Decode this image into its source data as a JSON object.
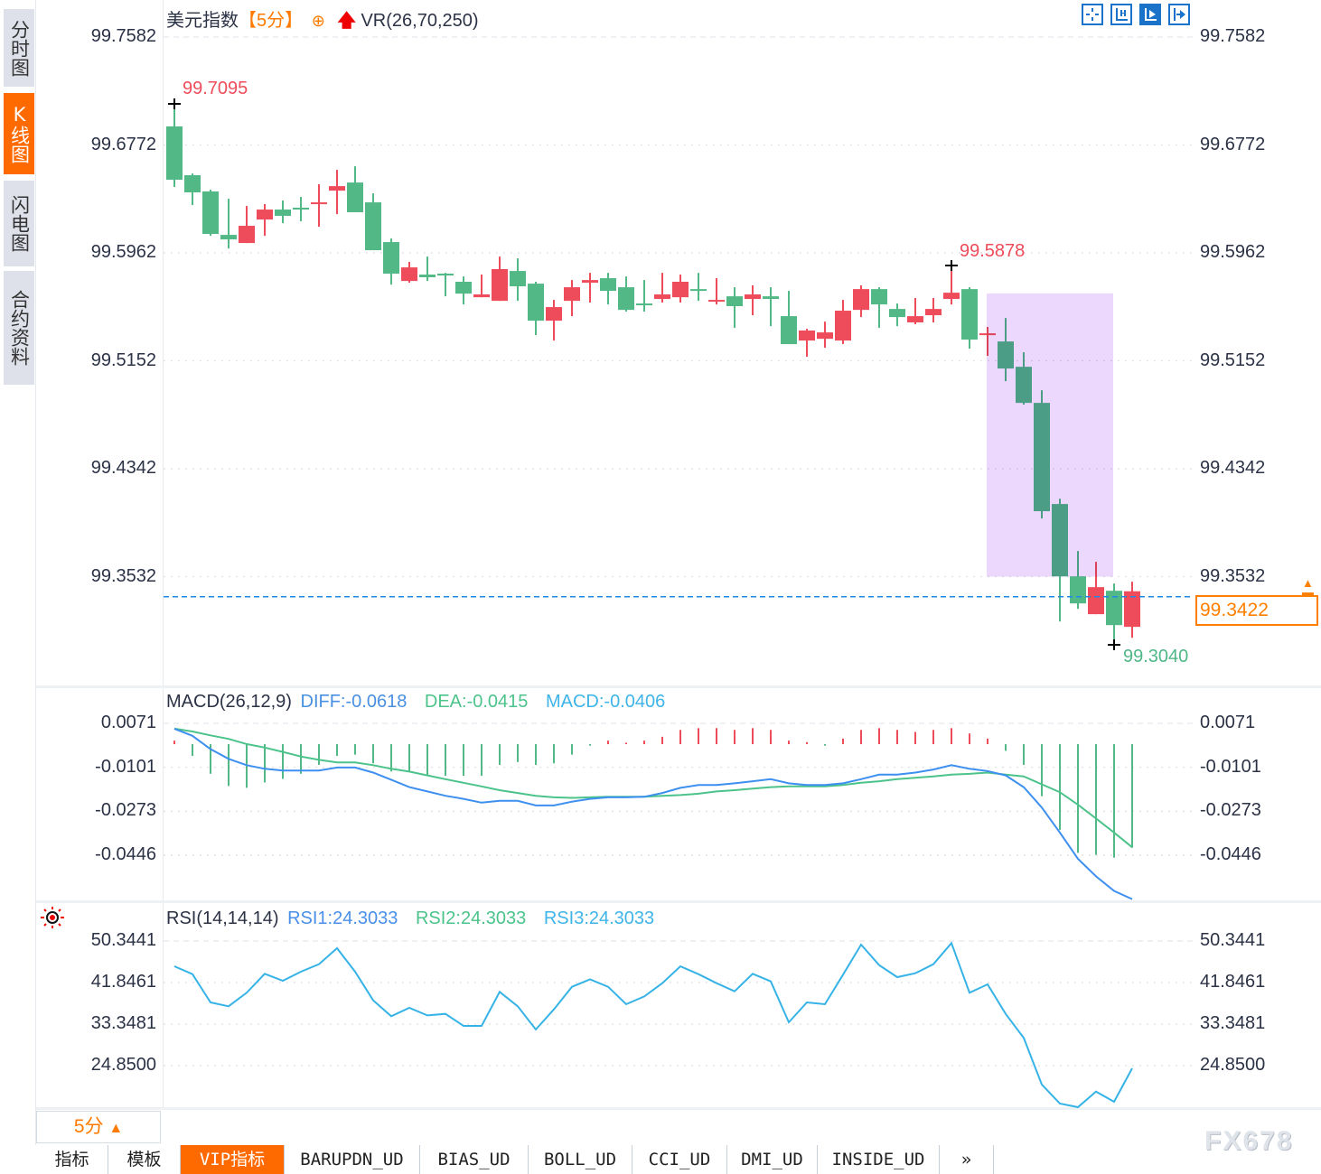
{
  "sidebar": {
    "tabs": [
      {
        "label": "分时图",
        "active": false
      },
      {
        "label": "K线图",
        "active": true
      },
      {
        "label": "闪电图",
        "active": false
      },
      {
        "label": "合约资料",
        "active": false
      }
    ]
  },
  "header": {
    "symbol": "美元指数",
    "period": "【5分】",
    "add_icon": "circle-plus-icon",
    "indicator_icon": "red-up-arrow-icon",
    "indicator": "VR(26,70,250)"
  },
  "toolbar": {
    "icons": [
      "crosshair-icon",
      "axis-zoom-icon",
      "axis-play-icon",
      "scroll-to-end-icon"
    ],
    "active_index": 2
  },
  "colors": {
    "up": "#ee4c5b",
    "down": "#52b986",
    "diff": "#3d8ff0",
    "dea": "#4cc38a",
    "rsi": "#36b3e6",
    "accent": "#ff6a00",
    "current_price_line": "#1e88e5",
    "highlight": "#ecd8fd"
  },
  "chart_data": [
    {
      "type": "candlestick",
      "title": "美元指数",
      "yticks": [
        "99.7582",
        "99.6772",
        "99.5962",
        "99.5152",
        "99.4342",
        "99.3532"
      ],
      "ylim": [
        99.3532,
        99.7582
      ],
      "grid": true,
      "high_label": "99.7095",
      "mid_high_label": "99.5878",
      "low_label": "99.3040",
      "current_price": "99.3422",
      "highlight_range_candles": [
        45,
        52
      ],
      "highlight_price_range": [
        99.3532,
        99.5658
      ],
      "candles_ohlc": [
        [
          99.6911,
          99.7095,
          99.6457,
          99.6511
        ],
        [
          99.6545,
          99.6558,
          99.6321,
          99.6416
        ],
        [
          99.6423,
          99.6436,
          99.609,
          99.6104
        ],
        [
          99.6097,
          99.6368,
          99.5995,
          99.6063
        ],
        [
          99.6036,
          99.6314,
          99.6036,
          99.6165
        ],
        [
          99.6212,
          99.6328,
          99.609,
          99.6287
        ],
        [
          99.6287,
          99.6355,
          99.6185,
          99.624
        ],
        [
          99.6301,
          99.6382,
          99.6199,
          99.6287
        ],
        [
          99.6328,
          99.6477,
          99.6158,
          99.6341
        ],
        [
          99.6429,
          99.6585,
          99.6253,
          99.6463
        ],
        [
          99.649,
          99.6612,
          99.6267,
          99.6267
        ],
        [
          99.6341,
          99.6409,
          99.5982,
          99.5982
        ],
        [
          99.6043,
          99.607,
          99.5724,
          99.5806
        ],
        [
          99.5751,
          99.5894,
          99.5738,
          99.5853
        ],
        [
          99.5799,
          99.5934,
          99.5751,
          99.5779
        ],
        [
          99.5806,
          99.5812,
          99.5636,
          99.5792
        ],
        [
          99.5745,
          99.5785,
          99.5575,
          99.5656
        ],
        [
          99.5629,
          99.5799,
          99.5629,
          99.565
        ],
        [
          99.5602,
          99.5934,
          99.5602,
          99.584
        ],
        [
          99.5826,
          99.5921,
          99.5602,
          99.5711
        ],
        [
          99.5731,
          99.5745,
          99.5345,
          99.5453
        ],
        [
          99.5453,
          99.5609,
          99.5304,
          99.5555
        ],
        [
          99.5602,
          99.5758,
          99.5487,
          99.5704
        ],
        [
          99.5738,
          99.5812,
          99.5589,
          99.5758
        ],
        [
          99.5772,
          99.5812,
          99.5575,
          99.5677
        ],
        [
          99.5704,
          99.5785,
          99.5521,
          99.5534
        ],
        [
          99.5582,
          99.5758,
          99.5521,
          99.5575
        ],
        [
          99.5616,
          99.5812,
          99.5589,
          99.565
        ],
        [
          99.5629,
          99.5799,
          99.5589,
          99.5745
        ],
        [
          99.569,
          99.5812,
          99.5602,
          99.5684
        ],
        [
          99.5602,
          99.5772,
          99.5575,
          99.5609
        ],
        [
          99.5636,
          99.5704,
          99.5399,
          99.5562
        ],
        [
          99.5616,
          99.5718,
          99.5494,
          99.565
        ],
        [
          99.5636,
          99.5704,
          99.5412,
          99.5616
        ],
        [
          99.5487,
          99.5677,
          99.5277,
          99.5277
        ],
        [
          99.5304,
          99.5392,
          99.5182,
          99.5379
        ],
        [
          99.5317,
          99.5446,
          99.525,
          99.5365
        ],
        [
          99.5304,
          99.5609,
          99.5277,
          99.5528
        ],
        [
          99.5534,
          99.5718,
          99.548,
          99.569
        ],
        [
          99.569,
          99.5704,
          99.5399,
          99.5575
        ],
        [
          99.5541,
          99.5582,
          99.5412,
          99.548
        ],
        [
          99.544,
          99.5623,
          99.5426,
          99.5487
        ],
        [
          99.5494,
          99.5623,
          99.544,
          99.5541
        ],
        [
          99.5616,
          99.5878,
          99.5575,
          99.5663
        ],
        [
          99.569,
          99.5704,
          99.5243,
          99.5311
        ],
        [
          99.5351,
          99.5406,
          99.5189,
          99.5358
        ],
        [
          99.5297,
          99.5473,
          99.4999,
          99.5094
        ],
        [
          99.5107,
          99.5216,
          99.4823,
          99.4836
        ],
        [
          99.4836,
          99.4931,
          99.3968,
          99.4023
        ],
        [
          99.4077,
          99.4117,
          99.3195,
          99.3534
        ],
        [
          99.3534,
          99.3724,
          99.329,
          99.3331
        ],
        [
          99.325,
          99.3643,
          99.325,
          99.3453
        ],
        [
          99.3426,
          99.348,
          99.304,
          99.3168
        ],
        [
          99.3155,
          99.3494,
          99.3073,
          99.3422
        ]
      ]
    },
    {
      "type": "line+bar",
      "title": "MACD(26,12,9)",
      "legend": {
        "diff": "DIFF:-0.0618",
        "dea": "DEA:-0.0415",
        "macd": "MACD:-0.0406"
      },
      "yticks": [
        "0.0071",
        "-0.0101",
        "-0.0273",
        "-0.0446"
      ],
      "ylim": [
        -0.0446,
        0.0071
      ],
      "diff": [
        0.005,
        0.0022,
        -0.003,
        -0.0068,
        -0.0093,
        -0.0107,
        -0.0114,
        -0.0114,
        -0.0114,
        -0.0102,
        -0.0102,
        -0.0122,
        -0.015,
        -0.0179,
        -0.0196,
        -0.0213,
        -0.0225,
        -0.024,
        -0.0233,
        -0.0233,
        -0.0251,
        -0.0251,
        -0.0236,
        -0.0225,
        -0.0219,
        -0.0219,
        -0.0217,
        -0.0202,
        -0.0182,
        -0.0171,
        -0.0171,
        -0.0164,
        -0.0156,
        -0.0148,
        -0.0164,
        -0.0171,
        -0.0171,
        -0.0164,
        -0.0148,
        -0.013,
        -0.013,
        -0.0122,
        -0.011,
        -0.0093,
        -0.0107,
        -0.0116,
        -0.0133,
        -0.0179,
        -0.0259,
        -0.0357,
        -0.046,
        -0.0529,
        -0.0586,
        -0.0618
      ],
      "dea": [
        0.005,
        0.0039,
        0.0024,
        0.001,
        -0.001,
        -0.0024,
        -0.0041,
        -0.0059,
        -0.0072,
        -0.0082,
        -0.0082,
        -0.0093,
        -0.0107,
        -0.0118,
        -0.0133,
        -0.0148,
        -0.0162,
        -0.0176,
        -0.0191,
        -0.0202,
        -0.0213,
        -0.0219,
        -0.0221,
        -0.0219,
        -0.0217,
        -0.0217,
        -0.0217,
        -0.0213,
        -0.021,
        -0.0205,
        -0.0196,
        -0.0191,
        -0.0185,
        -0.0179,
        -0.0176,
        -0.0176,
        -0.0176,
        -0.0171,
        -0.0162,
        -0.0156,
        -0.0148,
        -0.0142,
        -0.0137,
        -0.013,
        -0.0127,
        -0.0122,
        -0.013,
        -0.0137,
        -0.0168,
        -0.0199,
        -0.0248,
        -0.0302,
        -0.0357,
        -0.0415
      ],
      "macd": [
        0.0014,
        -0.0046,
        -0.0116,
        -0.0164,
        -0.0171,
        -0.015,
        -0.0136,
        -0.0116,
        -0.0081,
        -0.0046,
        -0.0041,
        -0.0075,
        -0.0107,
        -0.0109,
        -0.0124,
        -0.0124,
        -0.0124,
        -0.0124,
        -0.0081,
        -0.007,
        -0.0081,
        -0.0075,
        -0.0041,
        -0.0006,
        0.0014,
        0.0006,
        0.0014,
        0.0029,
        0.0056,
        0.0063,
        0.0063,
        0.0056,
        0.0063,
        0.0056,
        0.0014,
        0.0008,
        -0.0006,
        0.0022,
        0.0056,
        0.0063,
        0.0056,
        0.0048,
        0.0056,
        0.0063,
        0.0042,
        0.0022,
        -0.0026,
        -0.0081,
        -0.0204,
        -0.0336,
        -0.0426,
        -0.0434,
        -0.0445,
        -0.0406
      ]
    },
    {
      "type": "line",
      "title": "RSI(14,14,14)",
      "legend": {
        "rsi1": "RSI1:24.3033",
        "rsi2": "RSI2:24.3033",
        "rsi3": "RSI3:24.3033"
      },
      "yticks": [
        "50.3441",
        "41.8461",
        "33.3481",
        "24.8500"
      ],
      "ylim": [
        24.85,
        50.3441
      ],
      "rsi": [
        45.17,
        43.57,
        37.78,
        36.98,
        39.75,
        43.63,
        42.21,
        44.06,
        45.6,
        48.86,
        44.06,
        38.21,
        34.95,
        36.67,
        35.13,
        35.44,
        32.98,
        32.98,
        39.94,
        36.98,
        32.24,
        36.36,
        40.98,
        42.52,
        40.98,
        37.41,
        39.01,
        41.72,
        45.17,
        43.57,
        41.72,
        40.06,
        43.63,
        42.09,
        33.72,
        37.78,
        37.41,
        43.45,
        49.6,
        45.42,
        42.95,
        43.75,
        45.6,
        49.91,
        39.75,
        41.48,
        35.44,
        30.52,
        20.97,
        17.09,
        16.35,
        19.55,
        17.46,
        24.3
      ]
    }
  ],
  "rsi_icon": "sun-settings-icon",
  "period_selector": {
    "label": "5分",
    "arrow": "▲"
  },
  "bottom_tabs": [
    {
      "label": "指标",
      "active": false
    },
    {
      "label": "模板",
      "active": false
    },
    {
      "label": "VIP指标",
      "active": true
    },
    {
      "label": "BARUPDN_UD",
      "active": false
    },
    {
      "label": "BIAS_UD",
      "active": false
    },
    {
      "label": "BOLL_UD",
      "active": false
    },
    {
      "label": "CCI_UD",
      "active": false
    },
    {
      "label": "DMI_UD",
      "active": false
    },
    {
      "label": "INSIDE_UD",
      "active": false
    },
    {
      "label": "»",
      "active": false
    }
  ],
  "watermark": "FX678"
}
